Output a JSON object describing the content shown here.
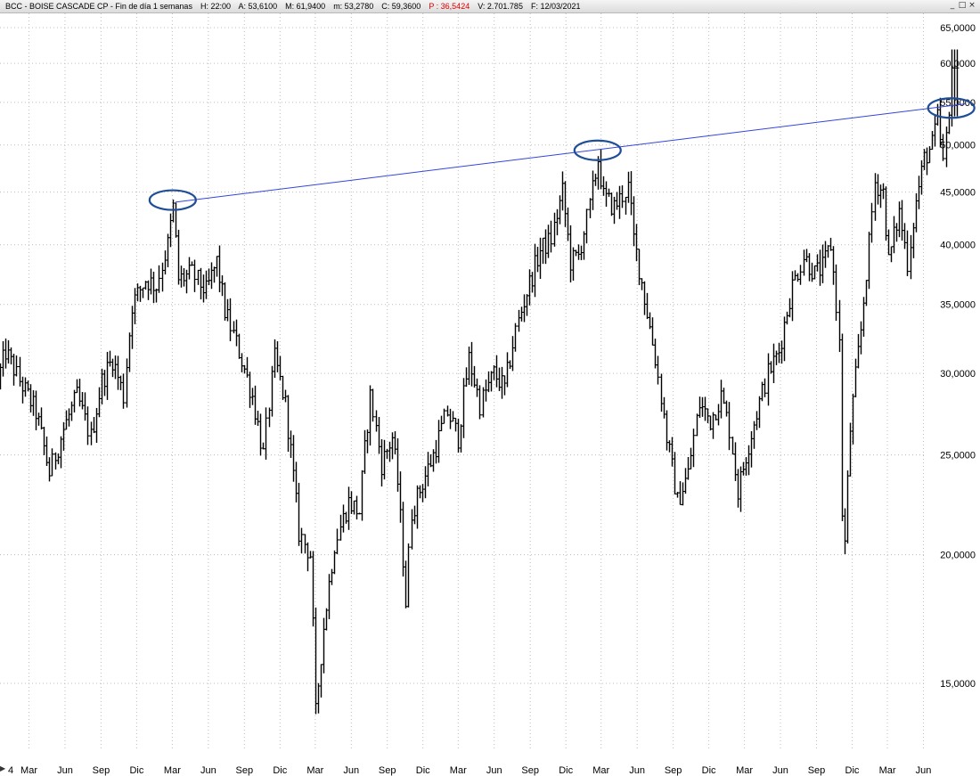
{
  "header": {
    "symbol": "BCC",
    "name": "BOISE CASCADE CP",
    "period": "Fin de día 1 semanas",
    "hour": "H: 22:00",
    "open": "A: 53,6100",
    "high": "M: 61,9400",
    "low": "m: 53,2780",
    "close": "C: 59,3600",
    "p_value": "P : 36,5424",
    "volume": "V: 2.701.785",
    "date": "F: 12/03/2021",
    "colors": {
      "p_value": "#e00000"
    }
  },
  "window_controls": {
    "minimize": "_",
    "restore": "□",
    "close": "×"
  },
  "chart_data": {
    "type": "bar",
    "scale": "log",
    "ylim": [
      13.5,
      66.5
    ],
    "yticks": [
      "65,0000",
      "60,0000",
      "55,0000",
      "50,0000",
      "45,0000",
      "40,0000",
      "35,0000",
      "30,0000",
      "25,0000",
      "20,0000",
      "15,0000"
    ],
    "ytick_values": [
      65,
      60,
      55,
      50,
      45,
      40,
      35,
      30,
      25,
      20,
      15
    ],
    "x_first_label": "4",
    "xticks": [
      "Mar",
      "Jun",
      "Sep",
      "Dic",
      "Mar",
      "Jun",
      "Sep",
      "Dic",
      "Mar",
      "Jun",
      "Sep",
      "Dic",
      "Mar",
      "Jun",
      "Sep",
      "Dic",
      "Mar",
      "Jun",
      "Sep",
      "Dic",
      "Mar",
      "Jun",
      "Sep",
      "Dic",
      "Mar",
      "Jun"
    ],
    "x_start": "2014-12-26",
    "x_end": "2021-06-18",
    "grid": true,
    "price_key_points": [
      [
        "2014-12-26",
        29.5
      ],
      [
        "2015-01-16",
        31.5
      ],
      [
        "2015-02-20",
        29.5
      ],
      [
        "2015-04-03",
        27.5
      ],
      [
        "2015-05-08",
        24.0
      ],
      [
        "2015-06-12",
        26.5
      ],
      [
        "2015-07-17",
        28.5
      ],
      [
        "2015-08-21",
        26.0
      ],
      [
        "2015-09-18",
        29.5
      ],
      [
        "2015-10-16",
        31.0
      ],
      [
        "2015-11-13",
        28.5
      ],
      [
        "2015-12-04",
        35.0
      ],
      [
        "2016-01-08",
        37.0
      ],
      [
        "2016-02-05",
        36.5
      ],
      [
        "2016-03-04",
        40.0
      ],
      [
        "2016-03-18",
        43.5
      ],
      [
        "2016-04-01",
        37.0
      ],
      [
        "2016-05-06",
        37.5
      ],
      [
        "2016-06-10",
        36.0
      ],
      [
        "2016-07-08",
        38.5
      ],
      [
        "2016-07-29",
        34.5
      ],
      [
        "2016-09-02",
        31.5
      ],
      [
        "2016-10-07",
        28.5
      ],
      [
        "2016-11-04",
        25.0
      ],
      [
        "2016-12-02",
        31.0
      ],
      [
        "2016-12-30",
        28.0
      ],
      [
        "2017-02-03",
        21.0
      ],
      [
        "2017-03-03",
        20.0
      ],
      [
        "2017-03-17",
        14.0
      ],
      [
        "2017-04-07",
        17.0
      ],
      [
        "2017-05-05",
        20.5
      ],
      [
        "2017-06-09",
        22.5
      ],
      [
        "2017-07-07",
        22.0
      ],
      [
        "2017-08-04",
        28.5
      ],
      [
        "2017-09-01",
        24.5
      ],
      [
        "2017-09-29",
        26.0
      ],
      [
        "2017-10-13",
        23.5
      ],
      [
        "2017-11-03",
        18.0
      ],
      [
        "2017-11-17",
        22.0
      ],
      [
        "2017-12-15",
        23.5
      ],
      [
        "2018-01-12",
        25.0
      ],
      [
        "2018-02-16",
        27.5
      ],
      [
        "2018-03-16",
        26.0
      ],
      [
        "2018-04-13",
        31.0
      ],
      [
        "2018-05-11",
        28.0
      ],
      [
        "2018-06-15",
        30.0
      ],
      [
        "2018-07-13",
        29.0
      ],
      [
        "2018-08-10",
        33.0
      ],
      [
        "2018-09-07",
        36.0
      ],
      [
        "2018-10-12",
        39.5
      ],
      [
        "2018-11-09",
        40.5
      ],
      [
        "2018-12-07",
        45.0
      ],
      [
        "2018-12-28",
        38.5
      ],
      [
        "2019-01-18",
        39.0
      ],
      [
        "2019-02-15",
        43.5
      ],
      [
        "2019-03-08",
        48.5
      ],
      [
        "2019-03-22",
        44.5
      ],
      [
        "2019-04-19",
        43.5
      ],
      [
        "2019-05-24",
        45.5
      ],
      [
        "2019-06-07",
        40.5
      ],
      [
        "2019-07-05",
        35.5
      ],
      [
        "2019-08-02",
        31.0
      ],
      [
        "2019-08-30",
        26.0
      ],
      [
        "2019-09-27",
        22.5
      ],
      [
        "2019-10-25",
        24.0
      ],
      [
        "2019-11-22",
        28.0
      ],
      [
        "2019-12-20",
        27.0
      ],
      [
        "2020-01-17",
        28.5
      ],
      [
        "2020-02-07",
        26.5
      ],
      [
        "2020-02-28",
        23.0
      ],
      [
        "2020-03-20",
        25.0
      ],
      [
        "2020-04-17",
        27.5
      ],
      [
        "2020-05-15",
        30.0
      ],
      [
        "2020-06-12",
        31.5
      ],
      [
        "2020-07-17",
        36.5
      ],
      [
        "2020-08-14",
        39.0
      ],
      [
        "2020-09-11",
        37.5
      ],
      [
        "2020-10-02",
        38.0
      ],
      [
        "2020-10-23",
        40.0
      ],
      [
        "2020-11-06",
        35.0
      ],
      [
        "2020-11-13",
        32.0
      ],
      [
        "2020-11-20",
        22.0
      ],
      [
        "2020-11-27",
        20.5
      ],
      [
        "2020-12-11",
        26.5
      ],
      [
        "2021-01-08",
        33.0
      ],
      [
        "2021-01-29",
        40.0
      ],
      [
        "2021-02-12",
        46.0
      ],
      [
        "2021-03-05",
        45.0
      ],
      [
        "2021-03-19",
        38.5
      ],
      [
        "2021-04-16",
        43.0
      ],
      [
        "2021-05-07",
        38.5
      ],
      [
        "2021-05-28",
        44.0
      ],
      [
        "2021-06-18",
        48.5
      ],
      [
        "2021-07-09",
        50.0
      ],
      [
        "2021-07-23",
        53.0
      ],
      [
        "2021-08-06",
        48.0
      ],
      [
        "2021-08-20",
        53.0
      ],
      [
        "2021-09-03",
        59.4
      ]
    ],
    "trendline": {
      "color": "#3344dd",
      "from": [
        "2016-03-18",
        44.0
      ],
      "to": [
        "2021-09-24",
        54.8
      ]
    },
    "highlight_ellipses": {
      "color": "#1f4e96",
      "points": [
        [
          "2016-03-11",
          44.2
        ],
        [
          "2019-03-01",
          49.4
        ],
        [
          "2021-08-20",
          54.3
        ]
      ]
    }
  }
}
